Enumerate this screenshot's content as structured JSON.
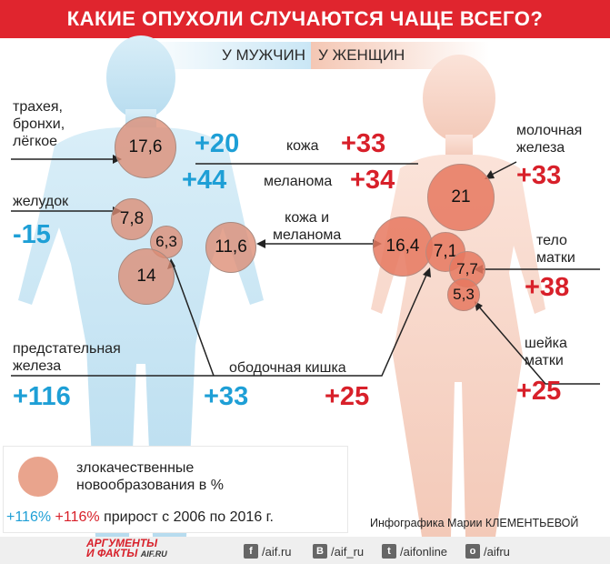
{
  "title": "КАКИЕ ОПУХОЛИ СЛУЧАЮТСЯ ЧАЩЕ ВСЕГО?",
  "tabs": {
    "men": "У МУЖЧИН",
    "women": "У ЖЕНЩИН"
  },
  "men": {
    "trachea_label_1": "трахея,",
    "trachea_label_2": "бронхи,",
    "trachea_label_3": "лёгкое",
    "trachea_value": "17,6",
    "stomach_label": "желудок",
    "stomach_value": "7,8",
    "stomach_growth": "-15",
    "prostate_label_1": "предстательная",
    "prostate_label_2": "железа",
    "prostate_value": "14",
    "prostate_growth": "+116",
    "colon_value": "6,3",
    "colon_growth": "+33",
    "skin_value": "11,6",
    "skin_growth": "+20",
    "melanoma_growth": "+44"
  },
  "center": {
    "skin": "кожа",
    "melanoma": "меланома",
    "skin_melanoma_1": "кожа и",
    "skin_melanoma_2": "меланома",
    "colon": "ободочная кишка"
  },
  "women": {
    "skin_growth": "+33",
    "melanoma_growth": "+34",
    "breast_label_1": "молочная",
    "breast_label_2": "железа",
    "breast_value": "21",
    "breast_growth": "+33",
    "skin_value": "16,4",
    "colon_value": "7,1",
    "colon_growth": "+25",
    "uterus_label_1": "тело",
    "uterus_label_2": "матки",
    "uterus_value": "7,7",
    "uterus_growth": "+38",
    "cervix_label_1": "шейка",
    "cervix_label_2": "матки",
    "cervix_value": "5,3",
    "cervix_growth": "+25"
  },
  "legend": {
    "line1": "злокачественные",
    "line2": "новообразования в %",
    "growth_blue": "+116%",
    "growth_red": "+116%",
    "growth_text": "прирост с 2006 по 2016 г."
  },
  "credit": "Инфографика Марии КЛЕМЕНТЬЕВОЙ",
  "footer": {
    "logo_1": "АРГУМЕНТЫ",
    "logo_2": "И ФАКТЫ",
    "logo_3": "AIF.RU",
    "fb": "/aif.ru",
    "vk": "/aif_ru",
    "tw": "/aifonline",
    "ok": "/aifru"
  },
  "colors": {
    "red": "#d8202a",
    "blue": "#1e9fd6",
    "header": "#e0252e"
  }
}
